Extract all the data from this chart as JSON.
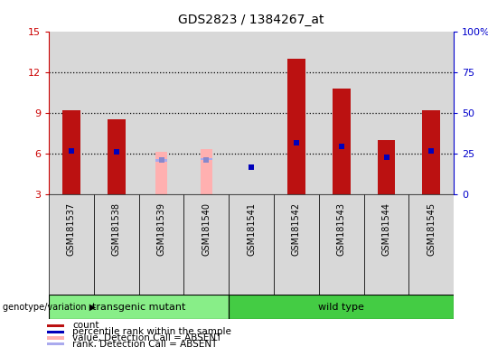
{
  "title": "GDS2823 / 1384267_at",
  "samples": [
    "GSM181537",
    "GSM181538",
    "GSM181539",
    "GSM181540",
    "GSM181541",
    "GSM181542",
    "GSM181543",
    "GSM181544",
    "GSM181545"
  ],
  "count_values": [
    9.2,
    8.5,
    null,
    null,
    null,
    13.0,
    10.8,
    7.0,
    9.2
  ],
  "absent_value_bars": [
    null,
    null,
    6.1,
    6.3,
    null,
    null,
    null,
    null,
    null
  ],
  "absent_rank_bars": [
    null,
    null,
    5.5,
    5.6,
    null,
    null,
    null,
    null,
    null
  ],
  "percentile_rank_left": [
    6.2,
    6.1,
    null,
    null,
    5.0,
    6.8,
    6.5,
    5.7,
    6.2
  ],
  "absent_percentile_rank_left": [
    null,
    null,
    5.5,
    5.5,
    null,
    null,
    null,
    null,
    null
  ],
  "left_ylim": [
    3,
    15
  ],
  "left_yticks": [
    3,
    6,
    9,
    12,
    15
  ],
  "right_ylim": [
    0,
    100
  ],
  "right_yticks": [
    0,
    25,
    50,
    75,
    100
  ],
  "right_yticklabels": [
    "0",
    "25",
    "50",
    "75",
    "100%"
  ],
  "left_axis_color": "#cc0000",
  "right_axis_color": "#0000cc",
  "bar_color_present": "#bb1111",
  "bar_color_absent_value": "#ffb0b0",
  "bar_color_absent_rank": "#aaaaee",
  "dot_color_present": "#0000bb",
  "dot_color_absent": "#8888cc",
  "group1_label": "transgenic mutant",
  "group2_label": "wild type",
  "group1_color": "#88ee88",
  "group2_color": "#44cc44",
  "group1_indices": [
    0,
    1,
    2,
    3
  ],
  "group2_indices": [
    4,
    5,
    6,
    7,
    8
  ],
  "genotype_label": "genotype/variation",
  "legend_items": [
    {
      "label": "count",
      "color": "#bb1111"
    },
    {
      "label": "percentile rank within the sample",
      "color": "#0000bb"
    },
    {
      "label": "value, Detection Call = ABSENT",
      "color": "#ffb0b0"
    },
    {
      "label": "rank, Detection Call = ABSENT",
      "color": "#aaaaee"
    }
  ],
  "col_bg_color": "#d8d8d8",
  "plot_bg_color": "#ffffff",
  "bar_width": 0.4,
  "absent_bar_width": 0.25
}
